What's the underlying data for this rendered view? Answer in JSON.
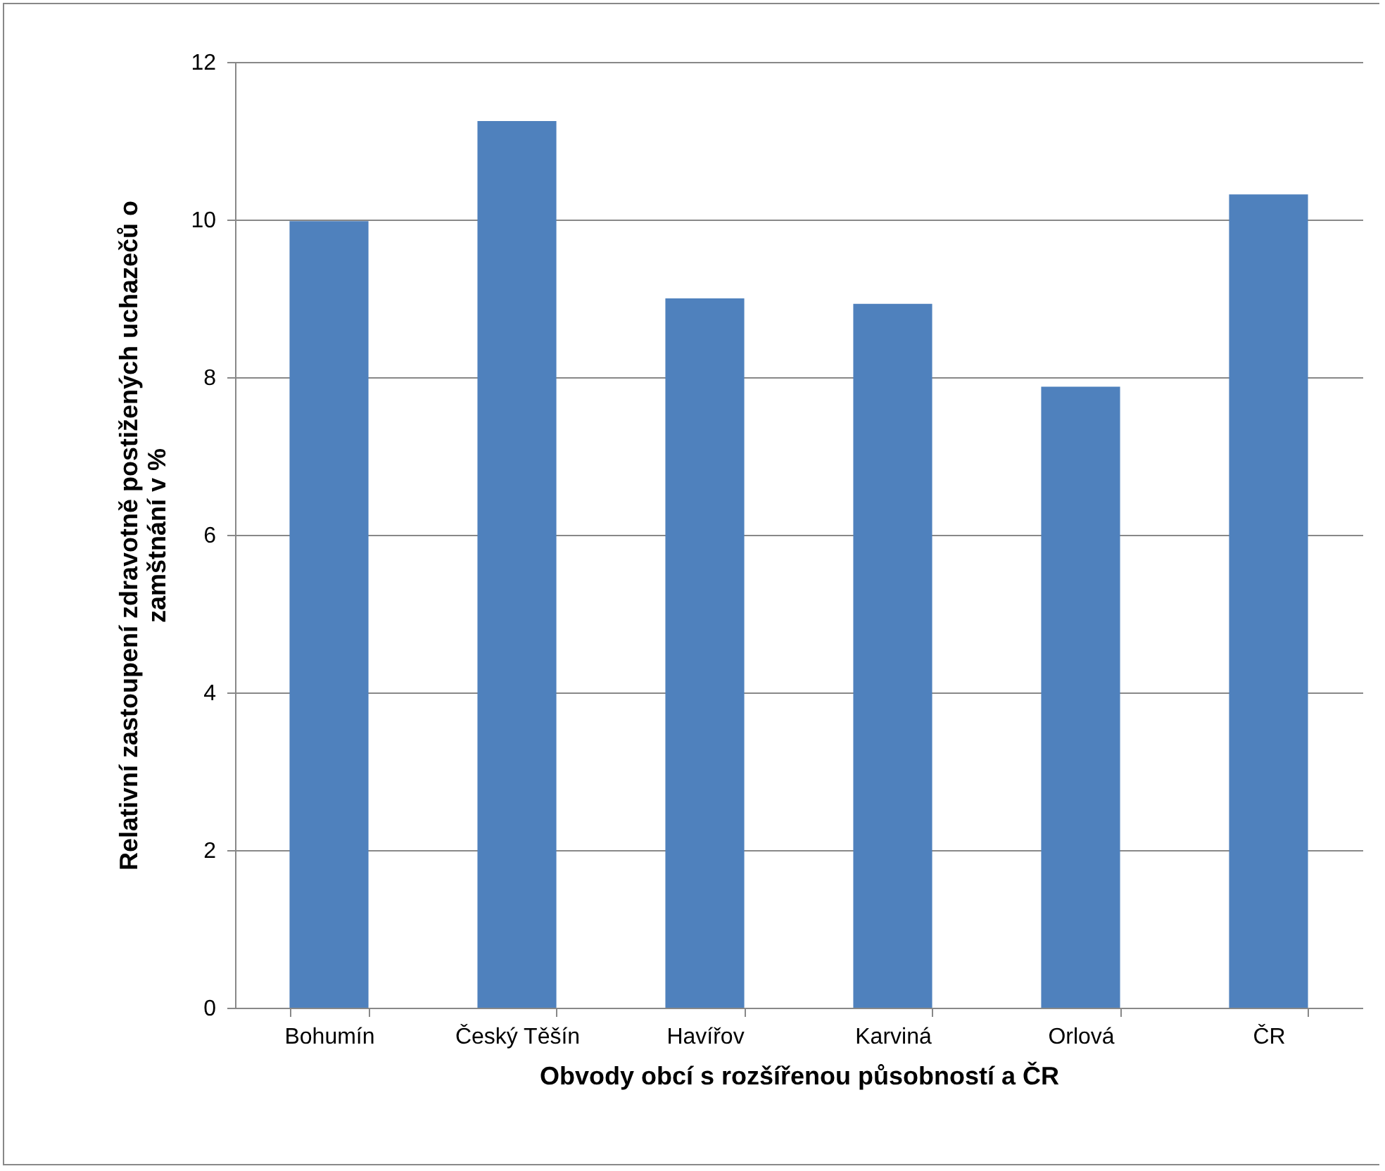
{
  "chart_data": {
    "type": "bar",
    "xlabel": "Obvody obcí s rozšířenou působností a ČR",
    "ylabel": "Relativní zastoupení zdravotně postižených uchazečů o zamštnání v %",
    "categories": [
      "Bohumín",
      "Český Těšín",
      "Havířov",
      "Karviná",
      "Orlová",
      "ČR"
    ],
    "values": [
      9.98,
      11.25,
      9.0,
      8.93,
      7.88,
      10.32
    ],
    "color": "#4f81bd",
    "ylim": [
      0,
      12
    ],
    "yticks": [
      0,
      2,
      4,
      6,
      8,
      10,
      12
    ],
    "grid": "y"
  }
}
